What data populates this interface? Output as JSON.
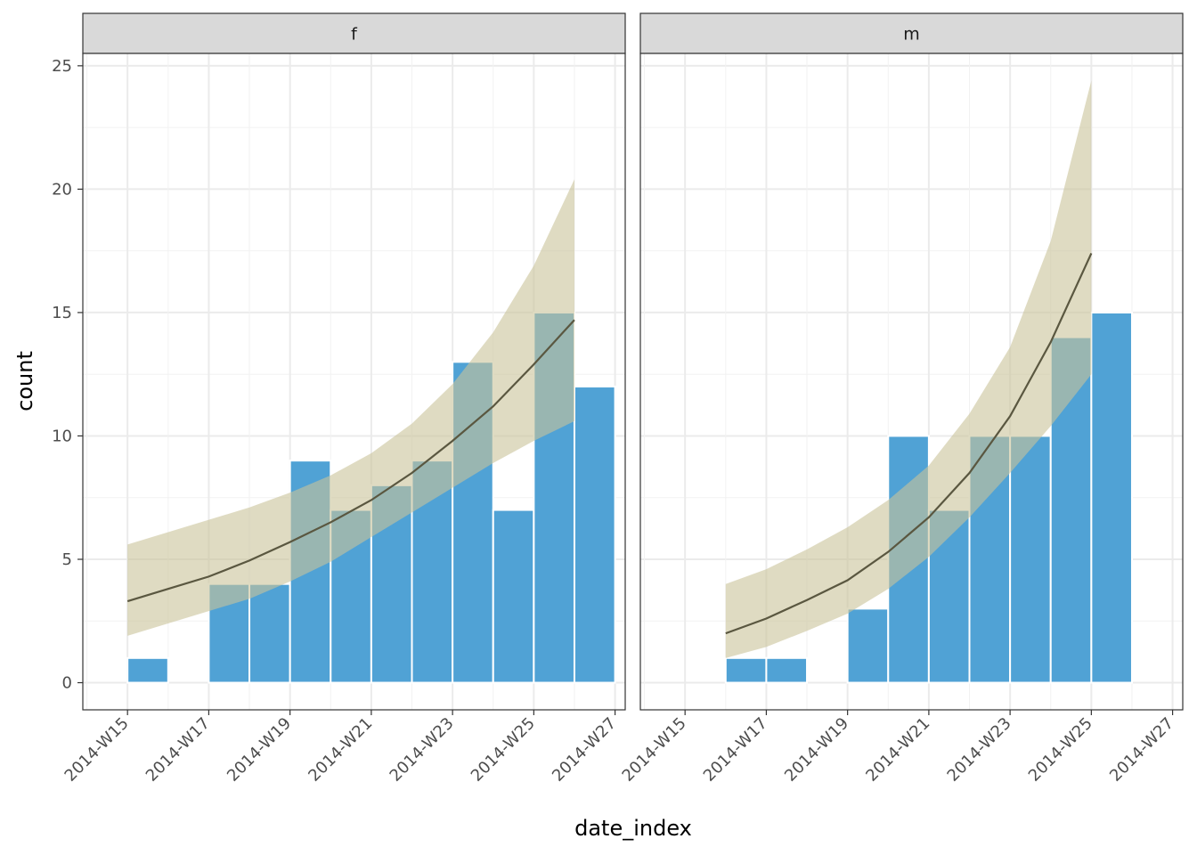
{
  "chart_data": {
    "type": "bar",
    "xlabel": "date_index",
    "ylabel": "count",
    "ylim": [
      -1.1,
      25.5
    ],
    "yticks": [
      0,
      5,
      10,
      15,
      20,
      25
    ],
    "x_tick_labels": [
      "2014-W15",
      "2014-W17",
      "2014-W19",
      "2014-W21",
      "2014-W23",
      "2014-W25",
      "2014-W27"
    ],
    "grid": true,
    "colors": {
      "bar": "#4a9fd4",
      "fit_line": "#5a5740",
      "ribbon": "#c9c39a"
    },
    "facets": [
      {
        "name": "f",
        "bars": [
          {
            "week": "2014-W15",
            "value": 1
          },
          {
            "week": "2014-W17",
            "value": 4
          },
          {
            "week": "2014-W18",
            "value": 4
          },
          {
            "week": "2014-W19",
            "value": 9
          },
          {
            "week": "2014-W20",
            "value": 7
          },
          {
            "week": "2014-W21",
            "value": 8
          },
          {
            "week": "2014-W22",
            "value": 9
          },
          {
            "week": "2014-W23",
            "value": 13
          },
          {
            "week": "2014-W24",
            "value": 7
          },
          {
            "week": "2014-W25",
            "value": 15
          },
          {
            "week": "2014-W26",
            "value": 12
          }
        ],
        "fit": {
          "weeks": [
            "2014-W15",
            "2014-W16",
            "2014-W17",
            "2014-W18",
            "2014-W19",
            "2014-W20",
            "2014-W21",
            "2014-W22",
            "2014-W23",
            "2014-W24",
            "2014-W25",
            "2014-W26"
          ],
          "estimate": [
            3.3,
            3.8,
            4.3,
            4.95,
            5.7,
            6.5,
            7.4,
            8.5,
            9.8,
            11.2,
            12.9,
            14.7
          ],
          "lower": [
            1.9,
            2.4,
            2.9,
            3.4,
            4.1,
            4.9,
            5.9,
            6.9,
            7.9,
            8.9,
            9.8,
            10.6
          ],
          "upper": [
            5.6,
            6.1,
            6.6,
            7.1,
            7.7,
            8.4,
            9.3,
            10.5,
            12.1,
            14.2,
            16.9,
            20.4
          ]
        }
      },
      {
        "name": "m",
        "bars": [
          {
            "week": "2014-W16",
            "value": 1
          },
          {
            "week": "2014-W17",
            "value": 1
          },
          {
            "week": "2014-W19",
            "value": 3
          },
          {
            "week": "2014-W20",
            "value": 10
          },
          {
            "week": "2014-W21",
            "value": 7
          },
          {
            "week": "2014-W22",
            "value": 10
          },
          {
            "week": "2014-W23",
            "value": 10
          },
          {
            "week": "2014-W24",
            "value": 14
          },
          {
            "week": "2014-W25",
            "value": 15
          }
        ],
        "fit": {
          "weeks": [
            "2014-W16",
            "2014-W17",
            "2014-W18",
            "2014-W19",
            "2014-W20",
            "2014-W21",
            "2014-W22",
            "2014-W23",
            "2014-W24",
            "2014-W25"
          ],
          "estimate": [
            2.0,
            2.6,
            3.35,
            4.15,
            5.3,
            6.7,
            8.5,
            10.8,
            13.8,
            17.4
          ],
          "lower": [
            1.0,
            1.45,
            2.1,
            2.8,
            3.8,
            5.1,
            6.7,
            8.5,
            10.4,
            12.5
          ],
          "upper": [
            4.0,
            4.6,
            5.4,
            6.3,
            7.4,
            8.8,
            10.9,
            13.6,
            17.9,
            24.4
          ]
        }
      }
    ]
  }
}
